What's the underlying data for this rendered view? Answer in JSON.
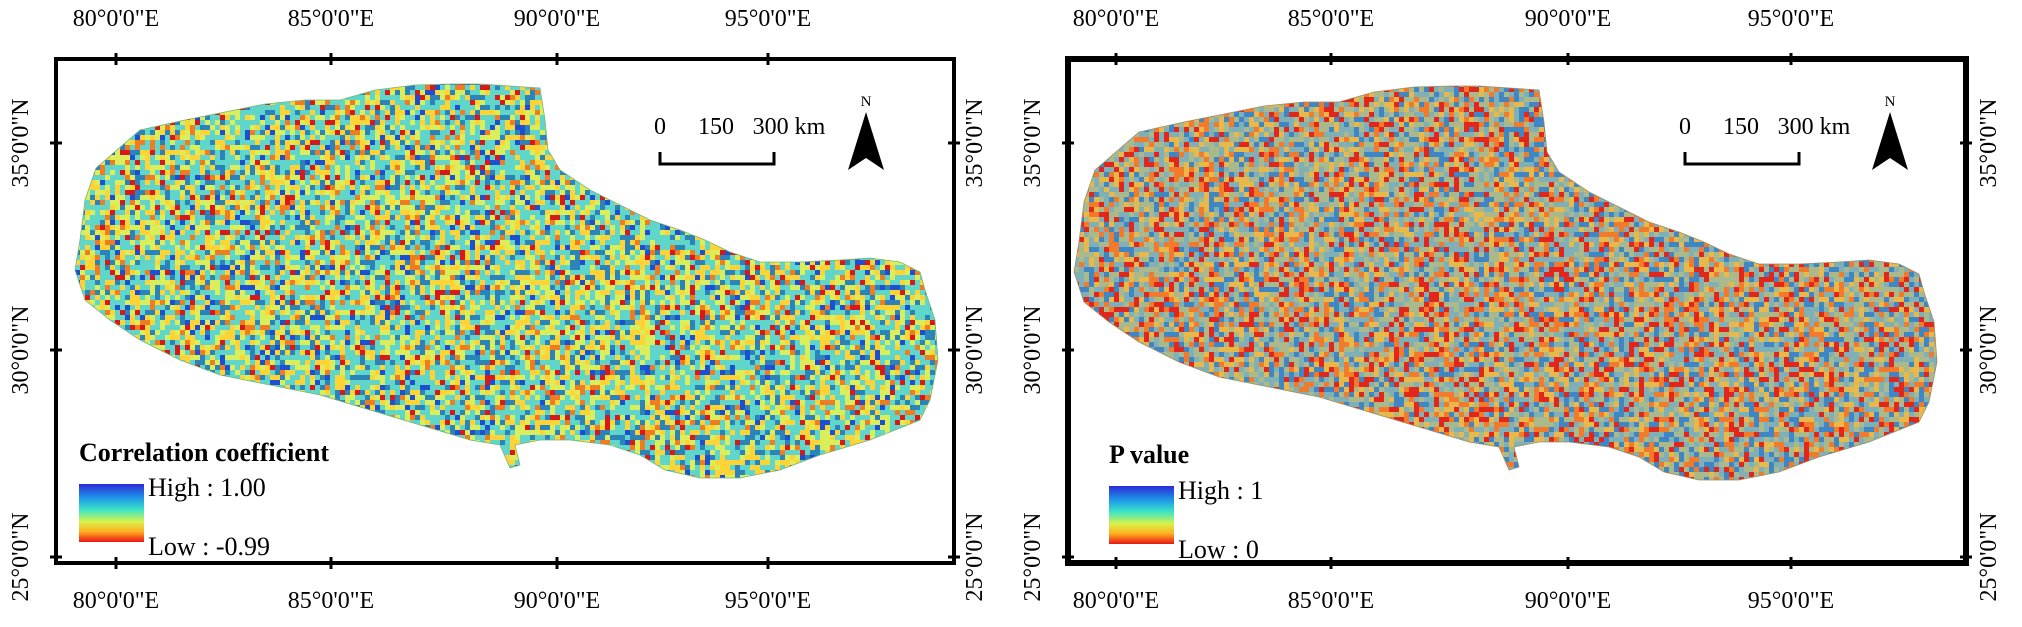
{
  "panels": [
    {
      "id": "correlation",
      "legend_title": "Correlation coefficient",
      "legend_high": "High : 1.00",
      "legend_low": "Low : -0.99",
      "scale_bar": [
        "0",
        "150",
        "300 km"
      ],
      "north": "N",
      "x_ticks": [
        "80°0'0\"E",
        "85°0'0\"E",
        "90°0'0\"E",
        "95°0'0\"E"
      ],
      "y_ticks": [
        "35°0'0\"N",
        "30°0'0\"N",
        "25°0'0\"N"
      ],
      "palette": [
        "#d7191c",
        "#f07c22",
        "#fdd335",
        "#d9ee5a",
        "#5fd6c9",
        "#2b83ba",
        "#1f4fd1"
      ],
      "weights": [
        0.05,
        0.07,
        0.17,
        0.2,
        0.33,
        0.13,
        0.05
      ]
    },
    {
      "id": "pvalue",
      "legend_title": "P value",
      "legend_high": "High : 1",
      "legend_low": "Low : 0",
      "scale_bar": [
        "0",
        "150",
        "300 km"
      ],
      "north": "N",
      "x_ticks": [
        "80°0'0\"E",
        "85°0'0\"E",
        "90°0'0\"E",
        "95°0'0\"E"
      ],
      "y_ticks": [
        "35°0'0\"N",
        "30°0'0\"N",
        "25°0'0\"N"
      ],
      "palette": [
        "#e3261b",
        "#f27a2a",
        "#e8b84a",
        "#a9b98c",
        "#7fb0b8",
        "#3f86c4"
      ],
      "weights": [
        0.15,
        0.14,
        0.14,
        0.22,
        0.2,
        0.15
      ]
    }
  ]
}
